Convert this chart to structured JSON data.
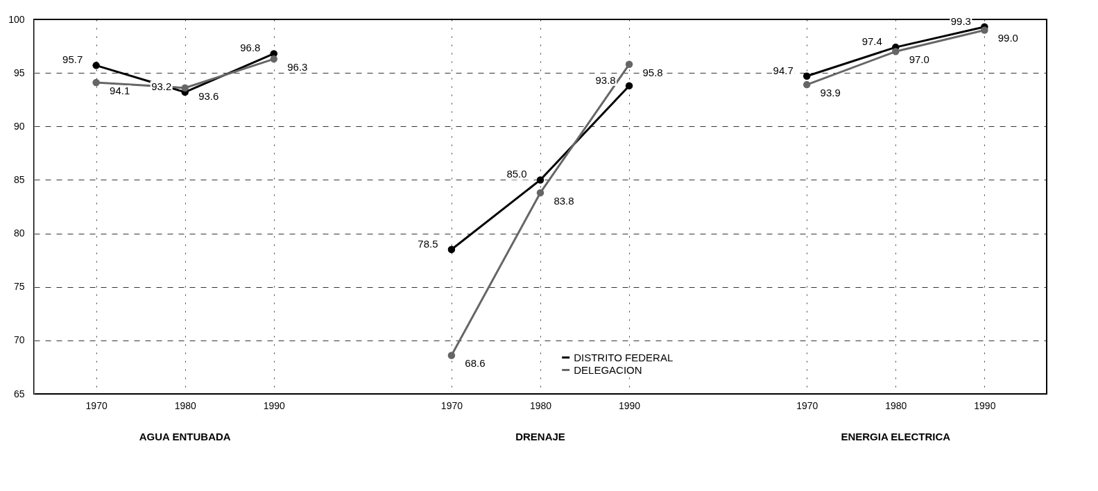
{
  "chart_data": {
    "type": "line",
    "categories": [
      "1970",
      "1980",
      "1990",
      null,
      "1970",
      "1980",
      "1990",
      null,
      "1970",
      "1980",
      "1990"
    ],
    "annotations": [
      "AGUA ENTUBADA",
      "DRENAJE",
      "ENERGIA ELECTRICA"
    ],
    "series": [
      {
        "name": "DISTRITO FEDERAL",
        "color": "#000000",
        "values": [
          95.7,
          93.2,
          96.8,
          null,
          78.5,
          85.0,
          93.8,
          null,
          94.7,
          97.4,
          99.3
        ],
        "value_labels": [
          "95.7",
          "93.2",
          "96.8",
          null,
          "78.5",
          "85.0",
          "93.8",
          null,
          "94.7",
          "97.4",
          "99.3"
        ]
      },
      {
        "name": "DELEGACION",
        "color": "#666666",
        "values": [
          94.1,
          93.6,
          96.3,
          null,
          68.6,
          83.8,
          95.8,
          null,
          93.9,
          97.0,
          99.0
        ],
        "value_labels": [
          "94.1",
          "93.6",
          "96.3",
          null,
          "68.6",
          "83.8",
          "95.8",
          null,
          "93.9",
          "97.0",
          "99.0"
        ]
      }
    ],
    "ylim": [
      65,
      100
    ],
    "yticks": [
      65,
      70,
      75,
      80,
      85,
      90,
      95,
      100
    ],
    "grid": true,
    "legend": "bottom",
    "marker": "circle",
    "line_style": "solid"
  }
}
